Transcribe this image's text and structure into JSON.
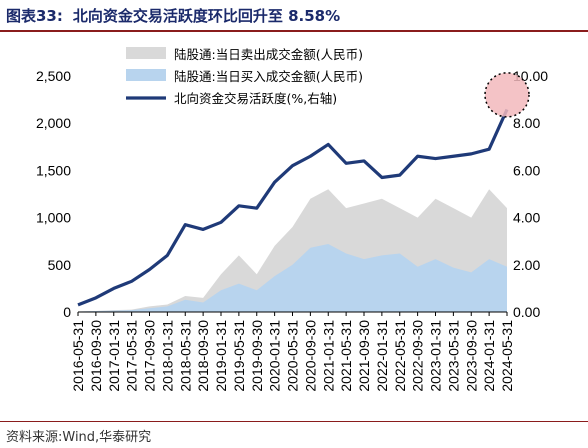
{
  "figure": {
    "label": "图表33:",
    "title": "北向资金交易活跃度环比回升至 8.58%",
    "source": "资料来源:Wind,华泰研究"
  },
  "chart_data": {
    "type": "area",
    "x_axis": {
      "labels": [
        "2016-05-31",
        "2016-09-30",
        "2017-01-31",
        "2017-05-31",
        "2017-09-30",
        "2018-01-31",
        "2018-05-31",
        "2018-09-30",
        "2019-01-31",
        "2019-05-31",
        "2019-09-30",
        "2020-01-31",
        "2020-05-31",
        "2020-09-30",
        "2021-01-31",
        "2021-05-31",
        "2021-09-30",
        "2022-01-31",
        "2022-05-31",
        "2022-09-30",
        "2023-01-31",
        "2023-05-31",
        "2023-09-30",
        "2024-01-31",
        "2024-05-31"
      ],
      "rotation": "vertical"
    },
    "y_left": {
      "min": 0,
      "max": 2500,
      "ticks": [
        0,
        500,
        1000,
        1500,
        2000,
        2500
      ],
      "tick_labels": [
        "0",
        "500",
        "1,000",
        "1,500",
        "2,000",
        "2,500"
      ]
    },
    "y_right": {
      "min": 0,
      "max": 10,
      "ticks": [
        0,
        2,
        4,
        6,
        8,
        10
      ],
      "tick_labels": [
        "0.00",
        "2.00",
        "4.00",
        "6.00",
        "8.00",
        "10.00"
      ]
    },
    "series": [
      {
        "name": "陆股通:当日卖出成交金额(人民币)",
        "kind": "area",
        "axis": "left",
        "color": "#d9d9d9",
        "values": [
          5,
          10,
          20,
          25,
          60,
          80,
          170,
          150,
          400,
          600,
          400,
          700,
          900,
          1200,
          1300,
          1100,
          1150,
          1200,
          1100,
          1000,
          1200,
          1100,
          1000,
          1300,
          1100
        ]
      },
      {
        "name": "陆股通:当日买入成交金额(人民币)",
        "kind": "area",
        "axis": "left",
        "color": "#b8d4ee",
        "values": [
          5,
          10,
          15,
          20,
          40,
          60,
          130,
          100,
          230,
          300,
          230,
          380,
          500,
          680,
          720,
          620,
          560,
          600,
          620,
          480,
          560,
          470,
          420,
          560,
          480
        ]
      },
      {
        "name": "北向资金交易活跃度(%,右轴)",
        "kind": "line",
        "axis": "right",
        "color": "#1f3a78",
        "values": [
          0.3,
          0.6,
          1.0,
          1.3,
          1.8,
          2.4,
          3.7,
          3.5,
          3.8,
          4.5,
          4.4,
          5.5,
          6.2,
          6.6,
          7.1,
          6.3,
          6.4,
          5.7,
          5.8,
          6.6,
          6.5,
          6.6,
          6.7,
          6.9,
          8.58
        ]
      }
    ],
    "legend": {
      "placement": "top-center"
    },
    "annotation": {
      "kind": "highlight-circle",
      "at_label": "2024-05-31",
      "value": 9.2,
      "color": "#f2b8bc"
    }
  }
}
